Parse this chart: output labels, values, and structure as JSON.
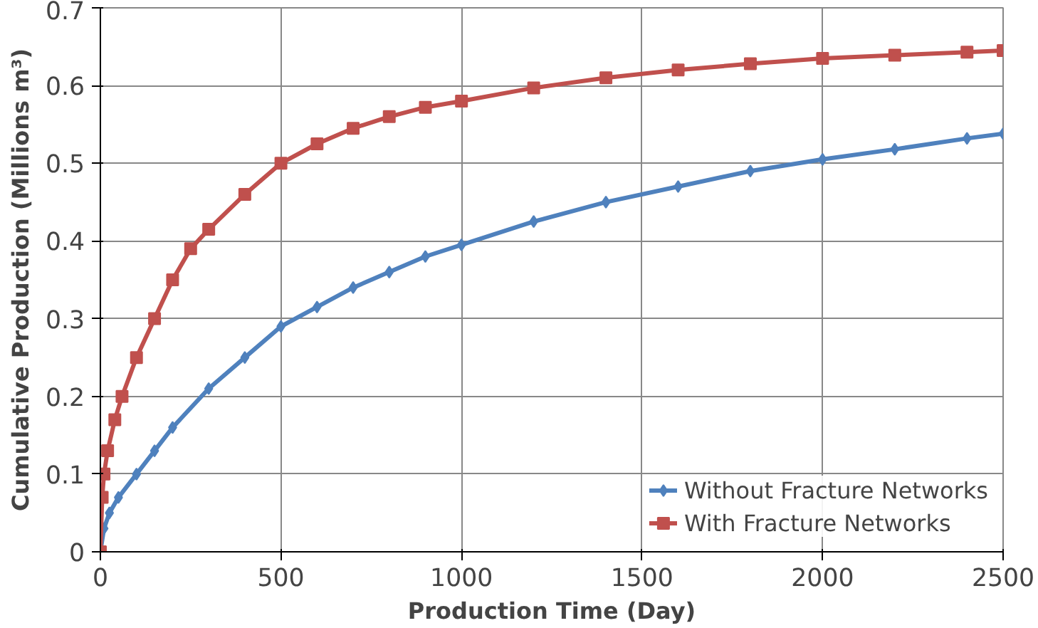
{
  "chart_data": {
    "type": "line",
    "xlabel": "Production Time (Day)",
    "ylabel": "Cumulative Production (Millions m³)",
    "xlim": [
      0,
      2500
    ],
    "xticks": [
      0,
      500,
      1000,
      1500,
      2000,
      2500
    ],
    "ylim": [
      0,
      0.7
    ],
    "yticks": [
      0,
      0.1,
      0.2,
      0.3,
      0.4,
      0.5,
      0.6,
      0.7
    ],
    "grid": true,
    "legend": "bottom right",
    "series": [
      {
        "name": "Without Fracture Networks",
        "color": "#4f81bd",
        "marker": "diamond",
        "x": [
          0,
          10,
          25,
          50,
          100,
          150,
          200,
          300,
          400,
          500,
          600,
          700,
          800,
          900,
          1000,
          1200,
          1400,
          1600,
          1800,
          2000,
          2200,
          2400,
          2500
        ],
        "values": [
          0,
          0.03,
          0.05,
          0.07,
          0.1,
          0.13,
          0.16,
          0.21,
          0.25,
          0.29,
          0.315,
          0.34,
          0.36,
          0.38,
          0.395,
          0.425,
          0.45,
          0.47,
          0.49,
          0.505,
          0.518,
          0.532,
          0.538
        ]
      },
      {
        "name": "With Fracture Networks",
        "color": "#c0504d",
        "marker": "square",
        "x": [
          0,
          5,
          10,
          20,
          40,
          60,
          100,
          150,
          200,
          250,
          300,
          400,
          500,
          600,
          700,
          800,
          900,
          1000,
          1200,
          1400,
          1600,
          1800,
          2000,
          2200,
          2400,
          2500
        ],
        "values": [
          0,
          0.07,
          0.1,
          0.13,
          0.17,
          0.2,
          0.25,
          0.3,
          0.35,
          0.39,
          0.415,
          0.46,
          0.5,
          0.525,
          0.545,
          0.56,
          0.572,
          0.58,
          0.597,
          0.61,
          0.62,
          0.628,
          0.635,
          0.639,
          0.643,
          0.645
        ]
      }
    ]
  }
}
